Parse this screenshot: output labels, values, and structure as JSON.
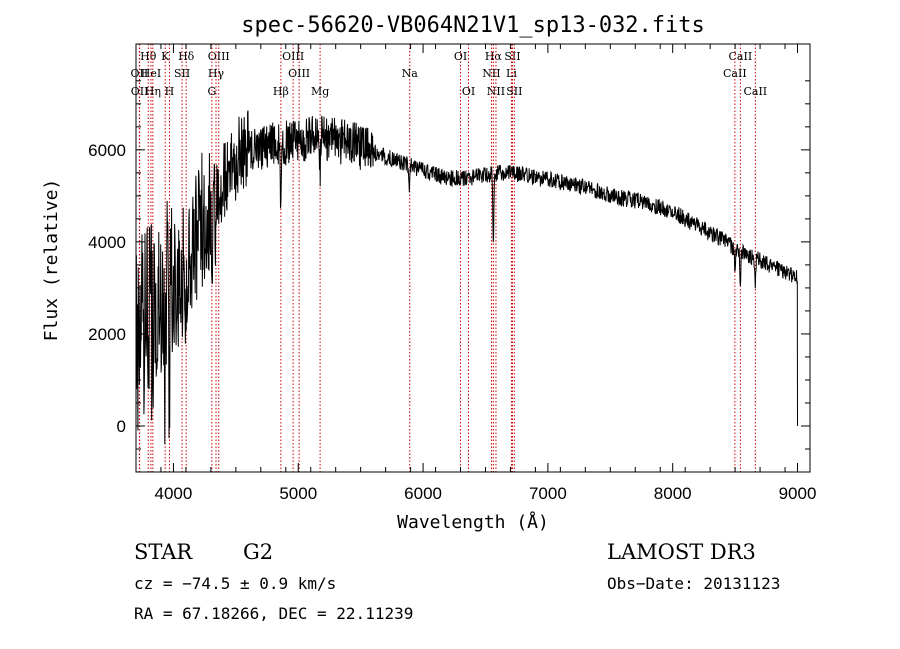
{
  "chart_data": {
    "type": "line",
    "title": "spec-56620-VB064N21V1_sp13-032.fits",
    "xlabel": "Wavelength (Å)",
    "ylabel": "Flux (relative)",
    "xlim": [
      3700,
      9100
    ],
    "ylim": [
      -1000,
      8300
    ],
    "x_ticks": [
      4000,
      5000,
      6000,
      7000,
      8000,
      9000
    ],
    "y_ticks": [
      0,
      2000,
      4000,
      6000
    ],
    "continuum": {
      "x": [
        3700,
        3800,
        3900,
        4000,
        4100,
        4200,
        4300,
        4400,
        4500,
        4600,
        4700,
        4800,
        4900,
        5000,
        5100,
        5200,
        5300,
        5400,
        5500,
        5600,
        5700,
        5800,
        5900,
        6000,
        6100,
        6200,
        6300,
        6400,
        6500,
        6600,
        6700,
        6800,
        6900,
        7000,
        7100,
        7200,
        7300,
        7400,
        7500,
        7600,
        7700,
        7800,
        7900,
        8000,
        8100,
        8200,
        8300,
        8400,
        8500,
        8600,
        8700,
        8800,
        8900,
        9000
      ],
      "y": [
        1800,
        2200,
        2500,
        2900,
        3500,
        4300,
        4900,
        5300,
        5800,
        6000,
        6050,
        6100,
        6150,
        6200,
        6250,
        6250,
        6200,
        6150,
        6050,
        5950,
        5850,
        5750,
        5650,
        5550,
        5450,
        5400,
        5380,
        5400,
        5450,
        5500,
        5500,
        5450,
        5400,
        5350,
        5300,
        5250,
        5200,
        5100,
        5000,
        4950,
        4900,
        4850,
        4750,
        4650,
        4500,
        4350,
        4200,
        4050,
        3850,
        3700,
        3600,
        3450,
        3350,
        3250
      ]
    },
    "absorption_features": [
      {
        "x": 3934,
        "depth": 1800
      },
      {
        "x": 3968,
        "depth": 1800
      },
      {
        "x": 4101,
        "depth": 800
      },
      {
        "x": 4308,
        "depth": 2600
      },
      {
        "x": 4340,
        "depth": 1500
      },
      {
        "x": 4861,
        "depth": 1400
      },
      {
        "x": 5175,
        "depth": 700
      },
      {
        "x": 5890,
        "depth": 500
      },
      {
        "x": 6563,
        "depth": 1600
      },
      {
        "x": 8498,
        "depth": 500
      },
      {
        "x": 8542,
        "depth": 700
      },
      {
        "x": 8662,
        "depth": 600
      }
    ],
    "spectral_lines": [
      {
        "label": "OII",
        "wavelength": 3727,
        "row": 2
      },
      {
        "label": "OII",
        "wavelength": 3729,
        "row": 3
      },
      {
        "label": "Hθ",
        "wavelength": 3798,
        "row": 1
      },
      {
        "label": "HeI",
        "wavelength": 3820,
        "row": 2
      },
      {
        "label": "Hη",
        "wavelength": 3835,
        "row": 3
      },
      {
        "label": "K",
        "wavelength": 3934,
        "row": 1
      },
      {
        "label": "SII",
        "wavelength": 4069,
        "row": 2
      },
      {
        "label": "H",
        "wavelength": 3968,
        "row": 3
      },
      {
        "label": "Hδ",
        "wavelength": 4102,
        "row": 1
      },
      {
        "label": "OIII",
        "wavelength": 4363,
        "row": 1
      },
      {
        "label": "Hγ",
        "wavelength": 4341,
        "row": 2
      },
      {
        "label": "G",
        "wavelength": 4308,
        "row": 3
      },
      {
        "label": "OIII",
        "wavelength": 4959,
        "row": 1
      },
      {
        "label": "OIII",
        "wavelength": 5007,
        "row": 2
      },
      {
        "label": "Hβ",
        "wavelength": 4861,
        "row": 3
      },
      {
        "label": "Mg",
        "wavelength": 5175,
        "row": 3
      },
      {
        "label": "Na",
        "wavelength": 5893,
        "row": 2
      },
      {
        "label": "OI",
        "wavelength": 6300,
        "row": 1
      },
      {
        "label": "OI",
        "wavelength": 6364,
        "row": 3
      },
      {
        "label": "Hα",
        "wavelength": 6563,
        "row": 1
      },
      {
        "label": "SII",
        "wavelength": 6716,
        "row": 1
      },
      {
        "label": "NII",
        "wavelength": 6548,
        "row": 2
      },
      {
        "label": "Li",
        "wavelength": 6708,
        "row": 2
      },
      {
        "label": "NII",
        "wavelength": 6584,
        "row": 3
      },
      {
        "label": "SII",
        "wavelength": 6731,
        "row": 3
      },
      {
        "label": "CaII",
        "wavelength": 8542,
        "row": 1
      },
      {
        "label": "CaII",
        "wavelength": 8498,
        "row": 2
      },
      {
        "label": "CaII",
        "wavelength": 8662,
        "row": 3
      }
    ]
  },
  "info": {
    "class_label": "STAR",
    "subclass_label": "G2",
    "survey_label": "LAMOST DR3",
    "redshift_text": "cz = −74.5 ± 0.9 km/s",
    "obs_date_text": "Obs−Date: 20131123",
    "coords_text": "RA =  67.18266, DEC =  22.11239"
  }
}
